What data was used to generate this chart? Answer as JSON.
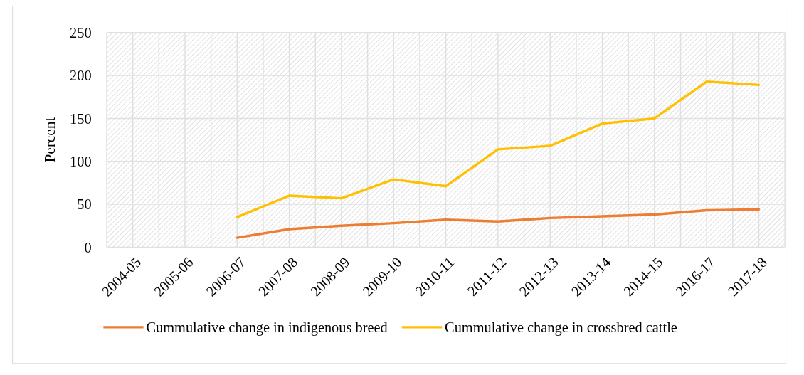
{
  "chart_data": {
    "type": "line",
    "ylabel": "Percent",
    "categories": [
      "2004-05",
      "2005-06",
      "2006-07",
      "2007-08",
      "2008-09",
      "2009-10",
      "2010-11",
      "2011-12",
      "2012-13",
      "2013-14",
      "2014-15",
      "2016-17",
      "2017-18"
    ],
    "series": [
      {
        "name": "Cummulative change in indigenous breed",
        "color": "#ed7d31",
        "values": [
          null,
          null,
          11,
          21,
          25,
          28,
          32,
          30,
          34,
          36,
          38,
          43,
          44
        ]
      },
      {
        "name": "Cummulative change in crossbred cattle",
        "color": "#ffc000",
        "values": [
          null,
          null,
          35,
          60,
          57,
          79,
          71,
          114,
          118,
          144,
          150,
          193,
          189
        ]
      }
    ],
    "ylim": [
      0,
      250
    ],
    "yticks": [
      0,
      50,
      100,
      150,
      200,
      250
    ],
    "grid": true,
    "legend": "bottom",
    "marker": "none",
    "line_style": "solid"
  }
}
